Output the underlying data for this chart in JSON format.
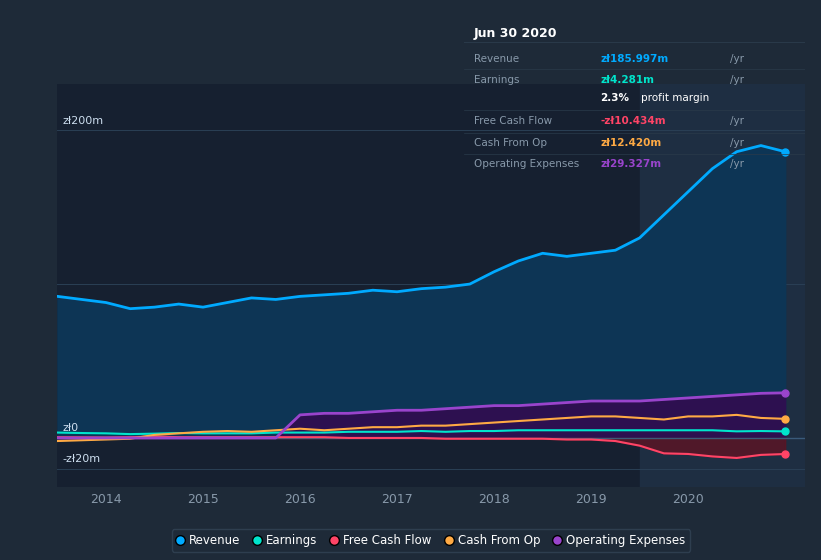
{
  "bg_color": "#1e2a38",
  "plot_bg_color": "#162030",
  "highlight_bg_color": "#1e2e42",
  "grid_color": "#2a3f55",
  "ylabel_200": "zł200m",
  "ylabel_0": "zł0",
  "ylabel_neg20": "-zł20m",
  "xlim_start": 2013.5,
  "xlim_end": 2021.2,
  "ylim_min": -32,
  "ylim_max": 230,
  "highlight_start": 2019.5,
  "highlight_end": 2021.2,
  "revenue_color": "#00aaff",
  "revenue_fill_color": "#0d3555",
  "earnings_color": "#00e5cc",
  "free_cash_flow_color": "#ff4466",
  "cash_from_op_color": "#ffaa44",
  "operating_expenses_color": "#9944cc",
  "operating_expenses_fill_color": "#2d1050",
  "fcf_neg_fill_color": "#5a1525",
  "x": [
    2013.5,
    2013.75,
    2014.0,
    2014.25,
    2014.5,
    2014.75,
    2015.0,
    2015.25,
    2015.5,
    2015.75,
    2016.0,
    2016.25,
    2016.5,
    2016.75,
    2017.0,
    2017.25,
    2017.5,
    2017.75,
    2018.0,
    2018.25,
    2018.5,
    2018.75,
    2019.0,
    2019.25,
    2019.5,
    2019.75,
    2020.0,
    2020.25,
    2020.5,
    2020.75,
    2021.0
  ],
  "revenue": [
    92,
    90,
    88,
    84,
    85,
    87,
    85,
    88,
    91,
    90,
    92,
    93,
    94,
    96,
    95,
    97,
    98,
    100,
    108,
    115,
    120,
    118,
    120,
    122,
    130,
    145,
    160,
    175,
    186,
    190,
    186
  ],
  "earnings": [
    3.5,
    3.2,
    3,
    2.5,
    2.8,
    3.2,
    3,
    3,
    3,
    3.5,
    3.5,
    3.5,
    4,
    4,
    4,
    4.5,
    4,
    4.5,
    4.5,
    5,
    5,
    5,
    5,
    5,
    5,
    5,
    5,
    5,
    4.3,
    4.5,
    4.281
  ],
  "free_cash_flow": [
    0.5,
    0.4,
    0.3,
    0.5,
    1,
    0.5,
    0.5,
    0.5,
    0.5,
    0.5,
    0.5,
    0.5,
    0,
    0,
    0,
    0,
    -0.5,
    -0.5,
    -0.5,
    -0.5,
    -0.5,
    -1,
    -1,
    -2,
    -5,
    -10,
    -10.4,
    -12,
    -13,
    -11,
    -10.434
  ],
  "cash_from_op": [
    -2,
    -1.5,
    -1,
    -0.5,
    2,
    3,
    4,
    4.5,
    4,
    5,
    6,
    5,
    6,
    7,
    7,
    8,
    8,
    9,
    10,
    11,
    12,
    13,
    14,
    14,
    13,
    12,
    14,
    14,
    15,
    13,
    12.42
  ],
  "operating_expenses": [
    0,
    0,
    0,
    0,
    0,
    0,
    0,
    0,
    0,
    0,
    15,
    16,
    16,
    17,
    18,
    18,
    19,
    20,
    21,
    21,
    22,
    23,
    24,
    24,
    24,
    25,
    26,
    27,
    28,
    29,
    29.327
  ],
  "info_box": {
    "title": "Jun 30 2020",
    "rows": [
      {
        "label": "Revenue",
        "value": "zł185.997m",
        "value_color": "#00aaff"
      },
      {
        "label": "Earnings",
        "value": "zł4.281m",
        "value_color": "#00e5cc"
      },
      {
        "label": "",
        "value": "2.3% profit margin",
        "value_color": "#ffffff"
      },
      {
        "label": "Free Cash Flow",
        "value": "-zł10.434m",
        "value_color": "#ff4466"
      },
      {
        "label": "Cash From Op",
        "value": "zł12.420m",
        "value_color": "#ffaa44"
      },
      {
        "label": "Operating Expenses",
        "value": "zł29.327m",
        "value_color": "#9944cc"
      }
    ]
  },
  "legend_items": [
    {
      "label": "Revenue",
      "color": "#00aaff"
    },
    {
      "label": "Earnings",
      "color": "#00e5cc"
    },
    {
      "label": "Free Cash Flow",
      "color": "#ff4466"
    },
    {
      "label": "Cash From Op",
      "color": "#ffaa44"
    },
    {
      "label": "Operating Expenses",
      "color": "#9944cc"
    }
  ]
}
